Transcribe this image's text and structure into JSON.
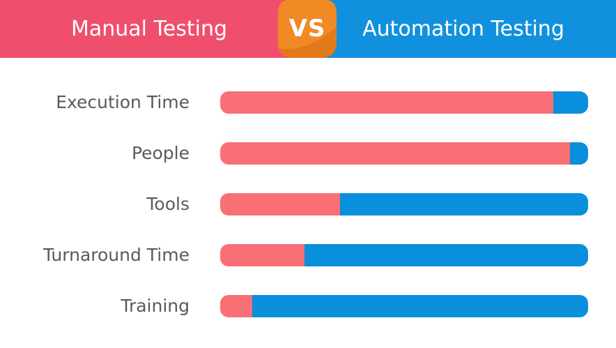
{
  "header": {
    "left_title": "Manual Testing",
    "badge_text": "VS",
    "right_title": "Automation Testing"
  },
  "colors": {
    "manual": "#f86f75",
    "automation": "#0a8fdc",
    "header_manual": "#ef4f6c",
    "header_automation": "#1191dd",
    "badge_orange": "#f08a25",
    "badge_orange_dark": "#e27a1c",
    "label": "#5a5a5a"
  },
  "chart_data": {
    "type": "bar",
    "orientation": "horizontal",
    "stacked": true,
    "normalized": true,
    "categories": [
      "Execution Time",
      "People",
      "Tools",
      "Turnaround Time",
      "Training"
    ],
    "series": [
      {
        "name": "Manual Testing",
        "values": [
          0.905,
          0.951,
          0.325,
          0.229,
          0.087
        ]
      },
      {
        "name": "Automation Testing",
        "values": [
          0.095,
          0.049,
          0.675,
          0.771,
          0.913
        ]
      }
    ],
    "title": "",
    "xlabel": "",
    "ylabel": "",
    "xlim": [
      0,
      1
    ],
    "grid": false,
    "legend": "top"
  }
}
